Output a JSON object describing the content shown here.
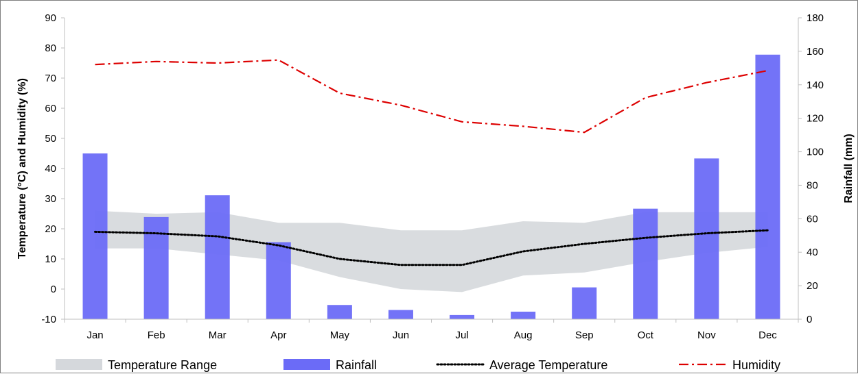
{
  "chart_data": {
    "type": "bar",
    "title": "",
    "categories": [
      "Jan",
      "Feb",
      "Mar",
      "Apr",
      "May",
      "Jun",
      "Jul",
      "Aug",
      "Sep",
      "Oct",
      "Nov",
      "Dec"
    ],
    "ylabel_left": "Temperature (°C) and Humidity (%)",
    "ylabel_right": "Rainfall (mm)",
    "ylim_left": [
      -10,
      90
    ],
    "ylim_right": [
      0,
      180
    ],
    "yticks_left": [
      -10,
      0,
      10,
      20,
      30,
      40,
      50,
      60,
      70,
      80,
      90
    ],
    "yticks_right": [
      0,
      20,
      40,
      60,
      80,
      100,
      120,
      140,
      160,
      180
    ],
    "grid": false,
    "legend_position": "bottom",
    "series": [
      {
        "name": "Temperature Range",
        "type": "area-range",
        "axis": "left",
        "color": "#d5d8dc",
        "low": [
          13.5,
          13.5,
          11.5,
          9.5,
          4,
          0,
          -1,
          4.5,
          5.5,
          9,
          12,
          14
        ],
        "high": [
          26,
          25,
          25.5,
          22,
          22,
          19.5,
          19.5,
          22.5,
          22,
          25.5,
          25.5,
          25.5
        ]
      },
      {
        "name": "Rainfall",
        "type": "bar",
        "axis": "right",
        "color": "#6b6bf7",
        "values": [
          99,
          61,
          74,
          46,
          8.5,
          5.5,
          2.5,
          4.5,
          19,
          66,
          96,
          158
        ]
      },
      {
        "name": "Average Temperature",
        "type": "line",
        "axis": "left",
        "color": "#000000",
        "dash": "dotted",
        "values": [
          19,
          18.5,
          17.5,
          14.5,
          10,
          8,
          8,
          12.5,
          15,
          17,
          18.5,
          19.5
        ]
      },
      {
        "name": "Humidity",
        "type": "line",
        "axis": "left",
        "color": "#dd0000",
        "dash": "dash-dot",
        "values": [
          74.5,
          75.5,
          75,
          76,
          65,
          61,
          55.5,
          54,
          52,
          63.5,
          68.5,
          72.5
        ]
      }
    ]
  }
}
